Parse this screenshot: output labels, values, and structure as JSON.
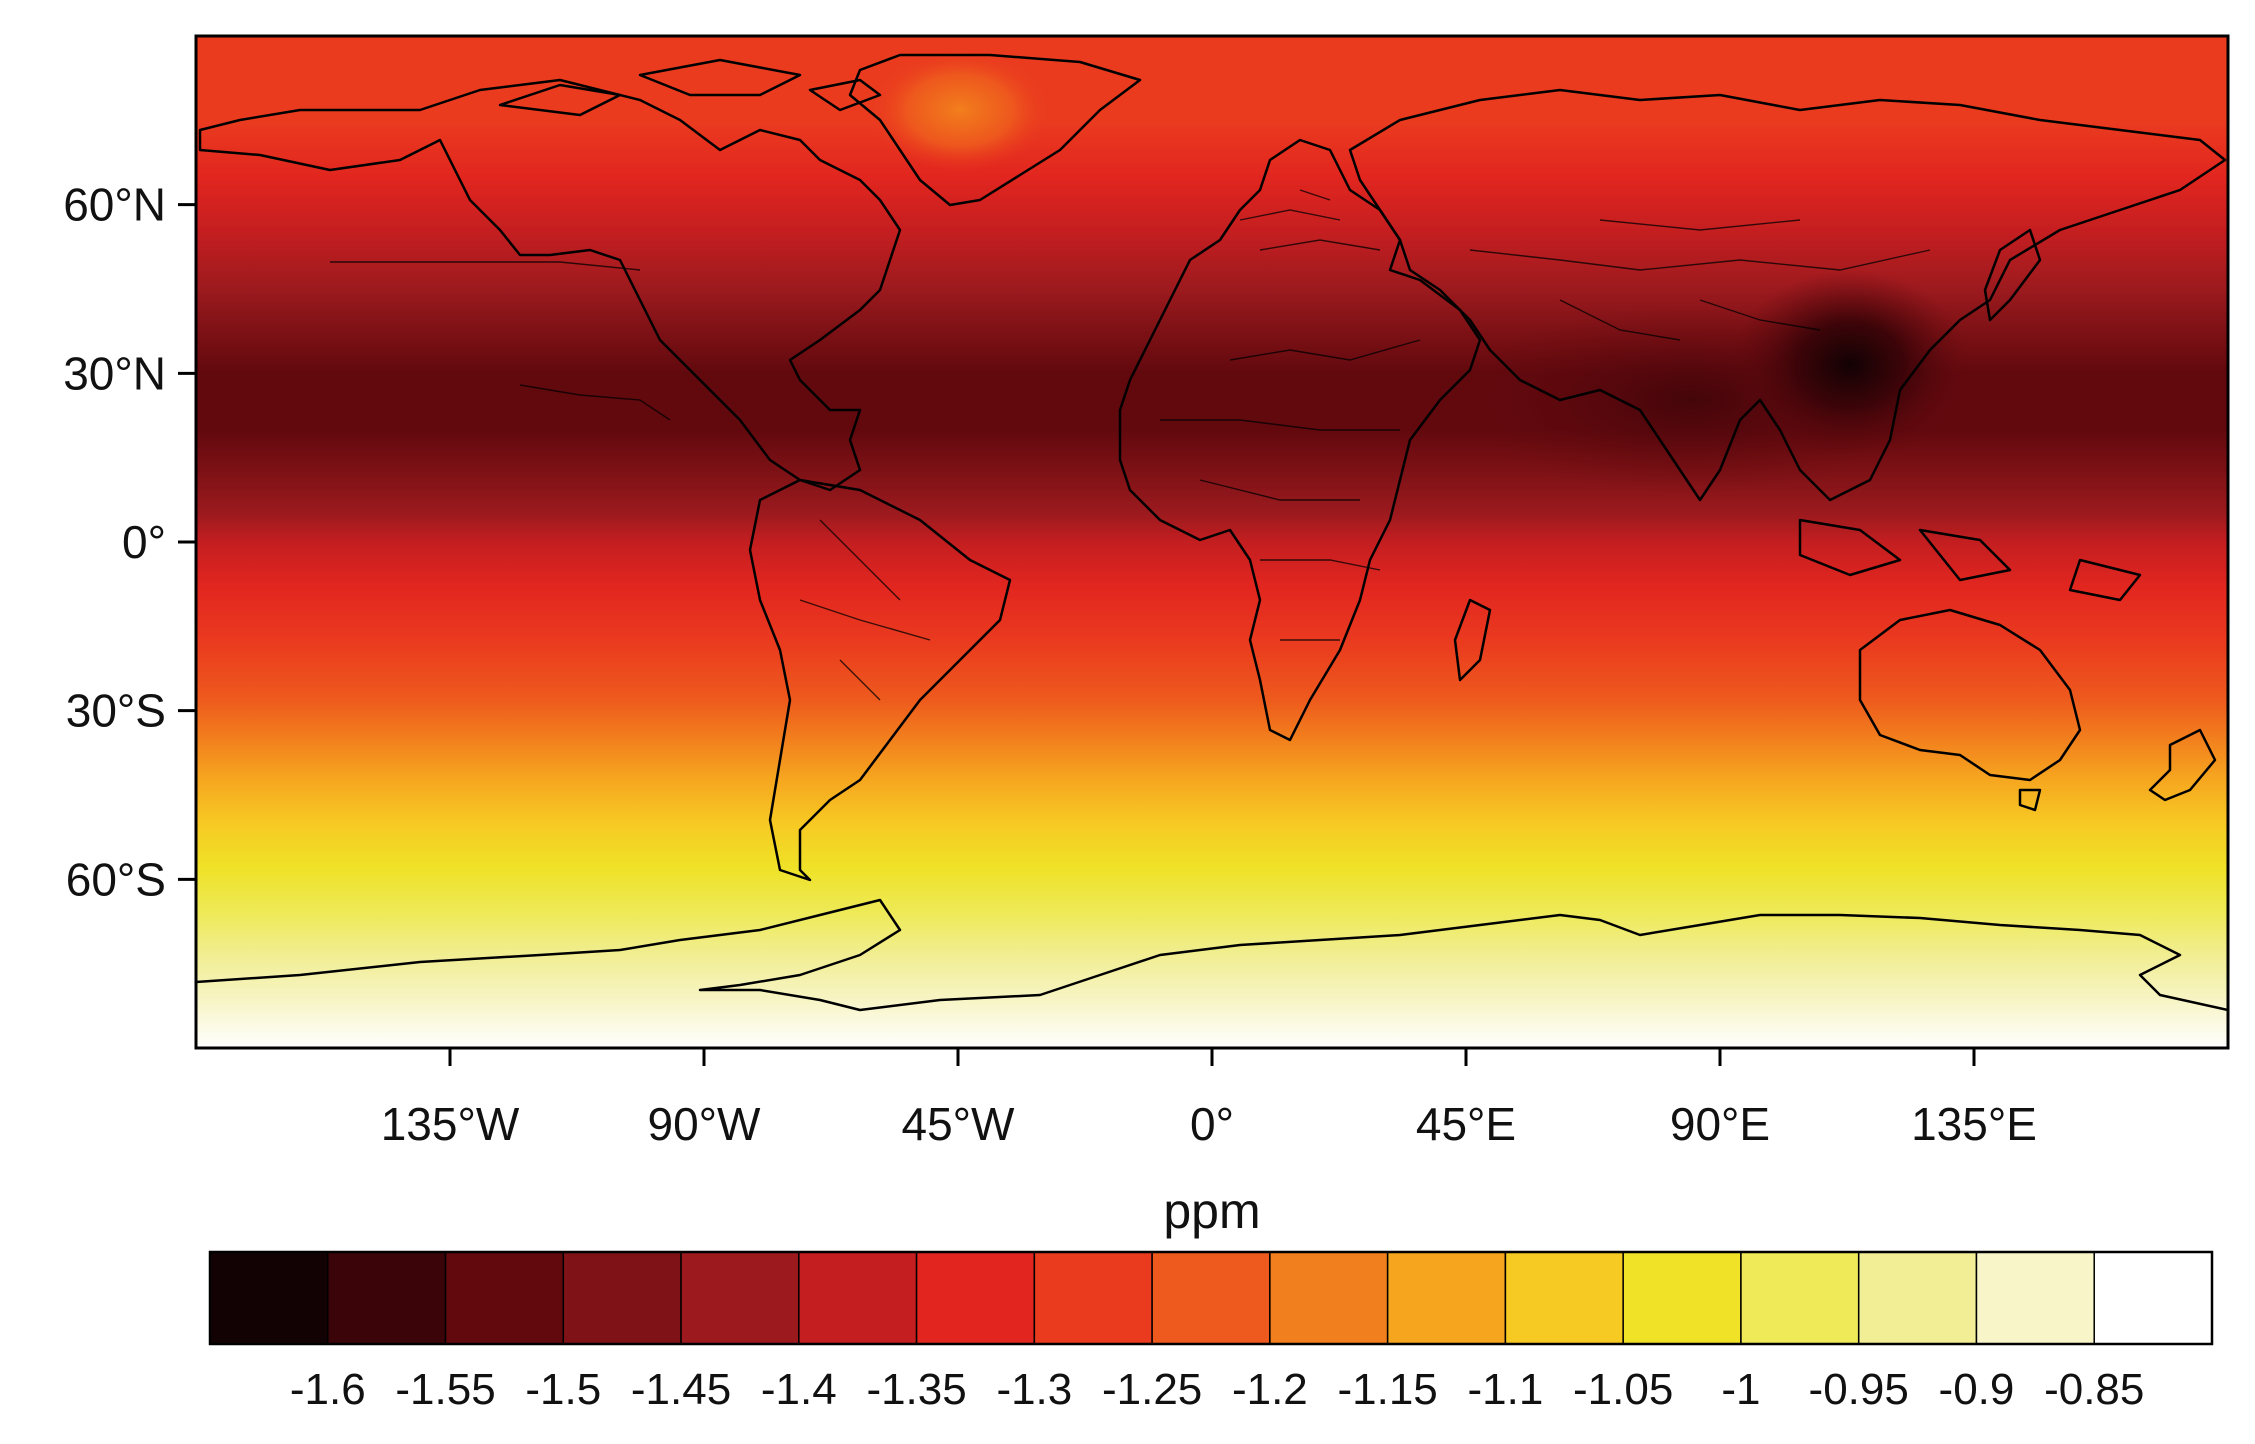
{
  "chart_data": {
    "type": "heatmap",
    "projection": "equirectangular",
    "map_extent": {
      "lon": [
        -180,
        180
      ],
      "lat": [
        -90,
        90
      ]
    },
    "units": "ppm",
    "x_ticks": [
      {
        "value": -135,
        "label": "135°W"
      },
      {
        "value": -90,
        "label": "90°W"
      },
      {
        "value": -45,
        "label": "45°W"
      },
      {
        "value": 0,
        "label": "0°"
      },
      {
        "value": 45,
        "label": "45°E"
      },
      {
        "value": 90,
        "label": "90°E"
      },
      {
        "value": 135,
        "label": "135°E"
      }
    ],
    "y_ticks": [
      {
        "value": 60,
        "label": "60°N"
      },
      {
        "value": 30,
        "label": "30°N"
      },
      {
        "value": 0,
        "label": "0°"
      },
      {
        "value": -30,
        "label": "30°S"
      },
      {
        "value": -60,
        "label": "60°S"
      }
    ],
    "colorbar": {
      "colors": [
        "#120204",
        "#3a0408",
        "#62090e",
        "#7f1216",
        "#9c1a1e",
        "#c41e20",
        "#e2261f",
        "#ea3b1f",
        "#ee5a1d",
        "#f27f1d",
        "#f6a51f",
        "#f7c923",
        "#efe227",
        "#eeea58",
        "#f1ee96",
        "#f8f5c9",
        "#ffffff"
      ],
      "boundaries": [
        "-1.6",
        "-1.55",
        "-1.5",
        "-1.45",
        "-1.4",
        "-1.35",
        "-1.3",
        "-1.25",
        "-1.2",
        "-1.15",
        "-1.1",
        "-1.05",
        "-1",
        "-0.95",
        "-0.9",
        "-0.85"
      ]
    },
    "latitude_profile": [
      {
        "lat": 90,
        "value": -1.26
      },
      {
        "lat": 75,
        "value": -1.27
      },
      {
        "lat": 65,
        "value": -1.33
      },
      {
        "lat": 55,
        "value": -1.37
      },
      {
        "lat": 45,
        "value": -1.43
      },
      {
        "lat": 38,
        "value": -1.48
      },
      {
        "lat": 30,
        "value": -1.52
      },
      {
        "lat": 20,
        "value": -1.53
      },
      {
        "lat": 12,
        "value": -1.47
      },
      {
        "lat": 5,
        "value": -1.42
      },
      {
        "lat": 0,
        "value": -1.37
      },
      {
        "lat": -8,
        "value": -1.33
      },
      {
        "lat": -18,
        "value": -1.28
      },
      {
        "lat": -28,
        "value": -1.23
      },
      {
        "lat": -35,
        "value": -1.17
      },
      {
        "lat": -42,
        "value": -1.12
      },
      {
        "lat": -50,
        "value": -1.06
      },
      {
        "lat": -58,
        "value": -1.01
      },
      {
        "lat": -66,
        "value": -0.97
      },
      {
        "lat": -74,
        "value": -0.92
      },
      {
        "lat": -82,
        "value": -0.86
      },
      {
        "lat": -90,
        "value": -0.8
      }
    ],
    "regional_anomalies": [
      {
        "region": "eastern China",
        "lon": 115,
        "lat": 31,
        "value": -1.62
      },
      {
        "region": "southern Asia",
        "lon": 80,
        "lat": 25,
        "value": -1.55
      },
      {
        "region": "Greenland",
        "lon": -42,
        "lat": 74,
        "value": -1.2
      }
    ]
  }
}
